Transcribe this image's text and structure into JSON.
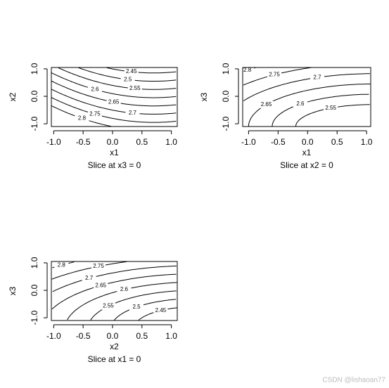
{
  "chart_data": [
    {
      "type": "contour",
      "title": "Slice at x3 = 0",
      "xlabel": "x1",
      "ylabel": "x2",
      "xlim": [
        -1.04,
        1.1
      ],
      "ylim": [
        -1.1,
        1.05
      ],
      "xticks": [
        {
          "value": -1,
          "label": "-1.0"
        },
        {
          "value": -0.5,
          "label": "-0.5"
        },
        {
          "value": 0,
          "label": "0.0"
        },
        {
          "value": 0.5,
          "label": "0.5"
        },
        {
          "value": 1,
          "label": "1.0"
        }
      ],
      "yticks": [
        {
          "value": -1,
          "label": "-1.0"
        },
        {
          "value": 0,
          "label": "0.0"
        },
        {
          "value": 1,
          "label": "1.0"
        }
      ],
      "levels": [
        2.45,
        2.5,
        2.55,
        2.6,
        2.65,
        2.7,
        2.75,
        2.8
      ],
      "color": "#000000"
    },
    {
      "type": "contour",
      "title": "Slice at x2 = 0",
      "xlabel": "x1",
      "ylabel": "x3",
      "xlim": [
        -1.1,
        1.07
      ],
      "ylim": [
        -1.1,
        1.05
      ],
      "xticks": [
        {
          "value": -1,
          "label": "-1.0"
        },
        {
          "value": -0.5,
          "label": "-0.5"
        },
        {
          "value": 0,
          "label": "0.0"
        },
        {
          "value": 0.5,
          "label": "0.5"
        },
        {
          "value": 1,
          "label": "1.0"
        }
      ],
      "yticks": [
        {
          "value": -1,
          "label": "-1.0"
        },
        {
          "value": 0,
          "label": "0.0"
        },
        {
          "value": 1,
          "label": "1.0"
        }
      ],
      "levels": [
        2.55,
        2.6,
        2.65,
        2.7,
        2.75,
        2.8
      ],
      "color": "#000000"
    },
    {
      "type": "contour",
      "title": "Slice at x1 = 0",
      "xlabel": "x2",
      "ylabel": "x3",
      "xlim": [
        -1.04,
        1.1
      ],
      "ylim": [
        -1.1,
        1.05
      ],
      "xticks": [
        {
          "value": -1,
          "label": "-1.0"
        },
        {
          "value": -0.5,
          "label": "-0.5"
        },
        {
          "value": 0,
          "label": "0.0"
        },
        {
          "value": 0.5,
          "label": "0.5"
        },
        {
          "value": 1,
          "label": "1.0"
        }
      ],
      "yticks": [
        {
          "value": -1,
          "label": "-1.0"
        },
        {
          "value": 0,
          "label": "0.0"
        },
        {
          "value": 1,
          "label": "1.0"
        }
      ],
      "levels": [
        2.45,
        2.5,
        2.55,
        2.6,
        2.65,
        2.7,
        2.75,
        2.8
      ],
      "color": "#000000"
    }
  ],
  "watermark": "CSDN @lishaoan77"
}
